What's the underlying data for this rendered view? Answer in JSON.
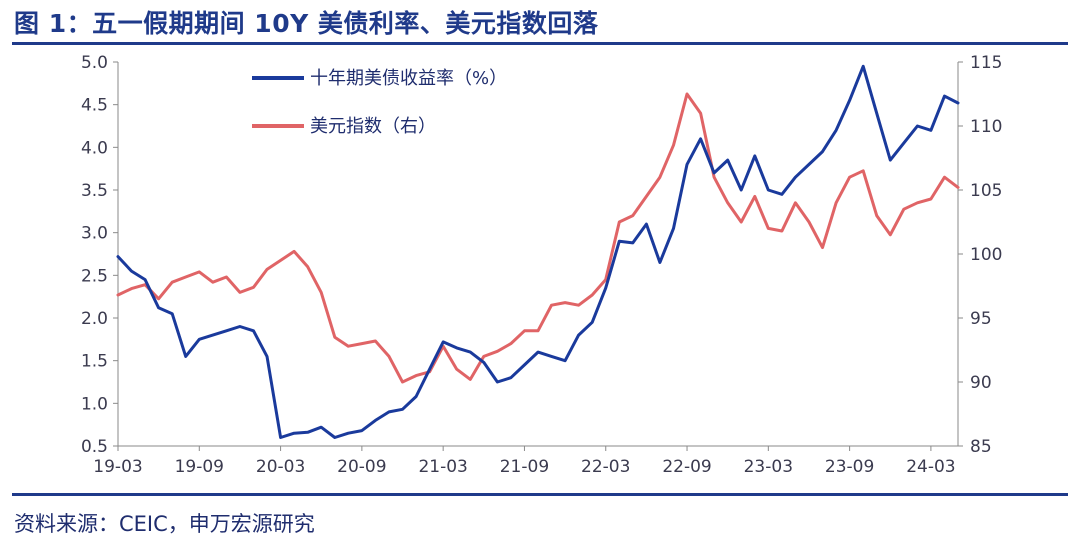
{
  "header": {
    "title": "图 1：五一假期期间 10Y 美债利率、美元指数回落"
  },
  "footer": {
    "source": "资料来源：CEIC，申万宏源研究"
  },
  "colors": {
    "rate": "#1a3a9c",
    "dxy": "#e06466",
    "accent": "#1f3a8a"
  },
  "chart_data": {
    "type": "line",
    "title": "",
    "xlabel": "",
    "x_ticks": [
      "19-03",
      "19-09",
      "20-03",
      "20-09",
      "21-03",
      "21-09",
      "22-03",
      "22-09",
      "23-03",
      "23-09",
      "24-03"
    ],
    "x_range": [
      "2019-03",
      "2024-05"
    ],
    "y_left": {
      "min": 0.5,
      "max": 5.0,
      "step": 0.5,
      "tick_labels": [
        "0.5",
        "1.0",
        "1.5",
        "2.0",
        "2.5",
        "3.0",
        "3.5",
        "4.0",
        "4.5",
        "5.0"
      ]
    },
    "y_right": {
      "min": 85,
      "max": 115,
      "step": 5,
      "tick_labels": [
        "85",
        "90",
        "95",
        "100",
        "105",
        "110",
        "115"
      ]
    },
    "legend": [
      {
        "name": "十年期美债收益率（%）",
        "color": "#1a3a9c",
        "axis": "left"
      },
      {
        "name": "美元指数（右）",
        "color": "#e06466",
        "axis": "right"
      }
    ],
    "series": [
      {
        "name": "十年期美债收益率（%）",
        "axis": "left",
        "x": [
          "2019-03",
          "2019-04",
          "2019-05",
          "2019-06",
          "2019-07",
          "2019-08",
          "2019-09",
          "2019-10",
          "2019-11",
          "2019-12",
          "2020-01",
          "2020-02",
          "2020-03",
          "2020-04",
          "2020-05",
          "2020-06",
          "2020-07",
          "2020-08",
          "2020-09",
          "2020-10",
          "2020-11",
          "2020-12",
          "2021-01",
          "2021-02",
          "2021-03",
          "2021-04",
          "2021-05",
          "2021-06",
          "2021-07",
          "2021-08",
          "2021-09",
          "2021-10",
          "2021-11",
          "2021-12",
          "2022-01",
          "2022-02",
          "2022-03",
          "2022-04",
          "2022-05",
          "2022-06",
          "2022-07",
          "2022-08",
          "2022-09",
          "2022-10",
          "2022-11",
          "2022-12",
          "2023-01",
          "2023-02",
          "2023-03",
          "2023-04",
          "2023-05",
          "2023-06",
          "2023-07",
          "2023-08",
          "2023-09",
          "2023-10",
          "2023-11",
          "2023-12",
          "2024-01",
          "2024-02",
          "2024-03",
          "2024-04",
          "2024-05"
        ],
        "y": [
          2.72,
          2.55,
          2.45,
          2.12,
          2.05,
          1.55,
          1.75,
          1.8,
          1.85,
          1.9,
          1.85,
          1.55,
          0.6,
          0.65,
          0.66,
          0.72,
          0.6,
          0.65,
          0.68,
          0.8,
          0.9,
          0.93,
          1.08,
          1.4,
          1.72,
          1.65,
          1.6,
          1.48,
          1.25,
          1.3,
          1.45,
          1.6,
          1.55,
          1.5,
          1.8,
          1.95,
          2.35,
          2.9,
          2.88,
          3.1,
          2.65,
          3.05,
          3.8,
          4.1,
          3.7,
          3.85,
          3.5,
          3.9,
          3.5,
          3.45,
          3.65,
          3.8,
          3.95,
          4.2,
          4.55,
          4.95,
          4.4,
          3.85,
          4.05,
          4.25,
          4.2,
          4.6,
          4.52
        ]
      },
      {
        "name": "美元指数（右）",
        "axis": "right",
        "x": [
          "2019-03",
          "2019-04",
          "2019-05",
          "2019-06",
          "2019-07",
          "2019-08",
          "2019-09",
          "2019-10",
          "2019-11",
          "2019-12",
          "2020-01",
          "2020-02",
          "2020-03",
          "2020-04",
          "2020-05",
          "2020-06",
          "2020-07",
          "2020-08",
          "2020-09",
          "2020-10",
          "2020-11",
          "2020-12",
          "2021-01",
          "2021-02",
          "2021-03",
          "2021-04",
          "2021-05",
          "2021-06",
          "2021-07",
          "2021-08",
          "2021-09",
          "2021-10",
          "2021-11",
          "2021-12",
          "2022-01",
          "2022-02",
          "2022-03",
          "2022-04",
          "2022-05",
          "2022-06",
          "2022-07",
          "2022-08",
          "2022-09",
          "2022-10",
          "2022-11",
          "2022-12",
          "2023-01",
          "2023-02",
          "2023-03",
          "2023-04",
          "2023-05",
          "2023-06",
          "2023-07",
          "2023-08",
          "2023-09",
          "2023-10",
          "2023-11",
          "2023-12",
          "2024-01",
          "2024-02",
          "2024-03",
          "2024-04",
          "2024-05"
        ],
        "y": [
          96.8,
          97.3,
          97.6,
          96.5,
          97.8,
          98.2,
          98.6,
          97.8,
          98.2,
          97.0,
          97.4,
          98.8,
          99.5,
          100.2,
          99.0,
          97.0,
          93.5,
          92.8,
          93.0,
          93.2,
          92.0,
          90.0,
          90.5,
          90.8,
          92.8,
          91.0,
          90.2,
          92.0,
          92.4,
          93.0,
          94.0,
          94.0,
          96.0,
          96.2,
          96.0,
          96.8,
          98.0,
          102.5,
          103.0,
          104.5,
          106.0,
          108.5,
          112.5,
          111.0,
          106.0,
          104.0,
          102.5,
          104.5,
          102.0,
          101.8,
          104.0,
          102.5,
          100.5,
          104.0,
          106.0,
          106.5,
          103.0,
          101.5,
          103.5,
          104.0,
          104.3,
          106.0,
          105.2
        ]
      }
    ]
  }
}
